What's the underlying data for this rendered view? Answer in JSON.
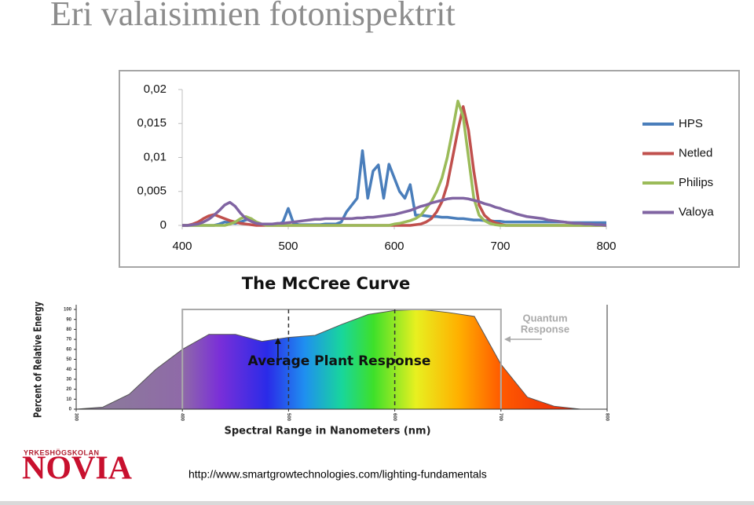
{
  "title": "Eri valaisimien fotonispektrit",
  "logo": {
    "line1": "YRKESHÖGSKOLAN",
    "line2": "NOVIA"
  },
  "source_url": "http://www.smartgrowtechnologies.com/lighting-fundamentals",
  "chart_data": [
    {
      "type": "line",
      "x": [
        400,
        405,
        410,
        415,
        420,
        425,
        430,
        435,
        440,
        445,
        450,
        455,
        460,
        465,
        470,
        475,
        480,
        485,
        490,
        495,
        500,
        505,
        510,
        515,
        520,
        525,
        530,
        535,
        540,
        545,
        550,
        555,
        560,
        565,
        570,
        575,
        580,
        585,
        590,
        595,
        600,
        605,
        610,
        615,
        620,
        625,
        630,
        635,
        640,
        645,
        650,
        655,
        660,
        665,
        670,
        675,
        680,
        685,
        690,
        695,
        700,
        705,
        710,
        715,
        720,
        725,
        730,
        735,
        740,
        745,
        750,
        755,
        760,
        765,
        770,
        775,
        780,
        785,
        790,
        795,
        800
      ],
      "series": [
        {
          "name": "HPS",
          "color": "#4a7ebb",
          "values": [
            0,
            0,
            0,
            0,
            0,
            0,
            0,
            0.0002,
            0.0005,
            0.0004,
            0.0003,
            0.0005,
            0.0008,
            0.001,
            0.0003,
            0.0001,
            0.0001,
            0.0001,
            0.0001,
            0.0005,
            0.0025,
            0.0003,
            0.0001,
            0.0001,
            0.0001,
            0.0001,
            0.0001,
            0.0002,
            0.0002,
            0.0002,
            0.0005,
            0.002,
            0.003,
            0.004,
            0.011,
            0.004,
            0.008,
            0.0089,
            0.004,
            0.009,
            0.007,
            0.005,
            0.004,
            0.006,
            0.0015,
            0.0015,
            0.0014,
            0.0013,
            0.0013,
            0.0012,
            0.0012,
            0.0011,
            0.001,
            0.001,
            0.0009,
            0.0008,
            0.0008,
            0.0007,
            0.0007,
            0.0006,
            0.0006,
            0.0005,
            0.0005,
            0.0005,
            0.0005,
            0.0005,
            0.0005,
            0.0005,
            0.0005,
            0.0005,
            0.0005,
            0.0005,
            0.0005,
            0.0004,
            0.0004,
            0.0004,
            0.0004,
            0.0004,
            0.0004,
            0.0004,
            0.0004
          ]
        },
        {
          "name": "Netled",
          "color": "#c0504d",
          "values": [
            0,
            0,
            0.0002,
            0.0005,
            0.001,
            0.0014,
            0.0016,
            0.0013,
            0.001,
            0.0007,
            0.0005,
            0.0003,
            0.0002,
            0.0001,
            0,
            0,
            0,
            0,
            0,
            0,
            0,
            0,
            0,
            0,
            0,
            0,
            0,
            0,
            0,
            0,
            0,
            0,
            0,
            0,
            0,
            0,
            0,
            0,
            0,
            0,
            0,
            0,
            0,
            0,
            0.0001,
            0.0002,
            0.0005,
            0.001,
            0.002,
            0.0035,
            0.006,
            0.01,
            0.014,
            0.0175,
            0.014,
            0.008,
            0.003,
            0.0015,
            0.0008,
            0.0004,
            0.0002,
            0,
            0,
            0,
            0,
            0,
            0,
            0,
            0,
            0,
            0,
            0,
            0,
            0,
            0,
            0,
            0,
            0,
            0,
            0,
            0
          ]
        },
        {
          "name": "Philips",
          "color": "#9bbb59",
          "values": [
            0,
            0,
            0,
            0,
            0,
            0,
            0,
            0,
            0,
            0.0002,
            0.0005,
            0.001,
            0.0013,
            0.001,
            0.0005,
            0.0002,
            0,
            0,
            0,
            0,
            0,
            0,
            0,
            0,
            0,
            0,
            0,
            0,
            0,
            0,
            0,
            0,
            0,
            0,
            0,
            0,
            0,
            0,
            0,
            0,
            0.0002,
            0.0003,
            0.0005,
            0.0007,
            0.001,
            0.0015,
            0.0025,
            0.0035,
            0.005,
            0.007,
            0.01,
            0.014,
            0.0183,
            0.016,
            0.01,
            0.004,
            0.0015,
            0.0007,
            0.0003,
            0.0001,
            0,
            0,
            0,
            0,
            0,
            0,
            0,
            0,
            0,
            0,
            0,
            0,
            0,
            0,
            0,
            0,
            0,
            0,
            0,
            0,
            0
          ]
        },
        {
          "name": "Valoya",
          "color": "#8064a2",
          "values": [
            0,
            0,
            0.0001,
            0.0002,
            0.0005,
            0.0009,
            0.0015,
            0.0022,
            0.003,
            0.0034,
            0.0028,
            0.0018,
            0.001,
            0.0006,
            0.0003,
            0.0002,
            0.0002,
            0.0002,
            0.0003,
            0.0003,
            0.0004,
            0.0005,
            0.0006,
            0.0007,
            0.0008,
            0.0009,
            0.0009,
            0.001,
            0.001,
            0.001,
            0.001,
            0.001,
            0.001,
            0.0011,
            0.0011,
            0.0012,
            0.0012,
            0.0013,
            0.0014,
            0.0015,
            0.0016,
            0.0018,
            0.002,
            0.0022,
            0.0025,
            0.0028,
            0.003,
            0.0033,
            0.0035,
            0.0037,
            0.0039,
            0.004,
            0.004,
            0.004,
            0.0039,
            0.0037,
            0.0035,
            0.0032,
            0.003,
            0.0027,
            0.0025,
            0.0022,
            0.002,
            0.0017,
            0.0015,
            0.0013,
            0.0012,
            0.0011,
            0.001,
            0.0008,
            0.0007,
            0.0006,
            0.0005,
            0.0004,
            0.0003,
            0.0003,
            0.0002,
            0.0002,
            0.0001,
            0.0001,
            0
          ]
        }
      ],
      "xlim": [
        400,
        800
      ],
      "xticks": [
        400,
        500,
        600,
        700,
        800
      ],
      "ylim": [
        0,
        0.02
      ],
      "yticks": [
        0,
        {
          "value": 0.005,
          "label": "0,005"
        },
        {
          "value": 0.01,
          "label": "0,01"
        },
        {
          "value": 0.015,
          "label": "0,015"
        },
        {
          "value": 0.02,
          "label": "0,02"
        }
      ],
      "grid": false,
      "legend": "right"
    },
    {
      "type": "area",
      "title": "The McCree Curve",
      "x_label": "Spectral Range in Nanometers (nm)",
      "y_label": "Percent of Relative Energy",
      "annotations": [
        "Average Plant Response",
        "Quantum",
        "Response"
      ],
      "x": [
        300,
        325,
        350,
        375,
        400,
        425,
        450,
        475,
        500,
        525,
        550,
        575,
        600,
        625,
        650,
        675,
        700,
        725,
        750,
        775,
        800
      ],
      "values": [
        0,
        2,
        15,
        40,
        60,
        75,
        75,
        68,
        72,
        74,
        85,
        95,
        99,
        100,
        97,
        93,
        45,
        12,
        3,
        0,
        0
      ],
      "xlim": [
        300,
        800
      ],
      "xticks": [
        300,
        400,
        500,
        600,
        700,
        800
      ],
      "ylim": [
        0,
        100
      ],
      "yticks": [
        0,
        10,
        20,
        30,
        40,
        50,
        60,
        70,
        80,
        90,
        100
      ],
      "grid": false
    }
  ]
}
